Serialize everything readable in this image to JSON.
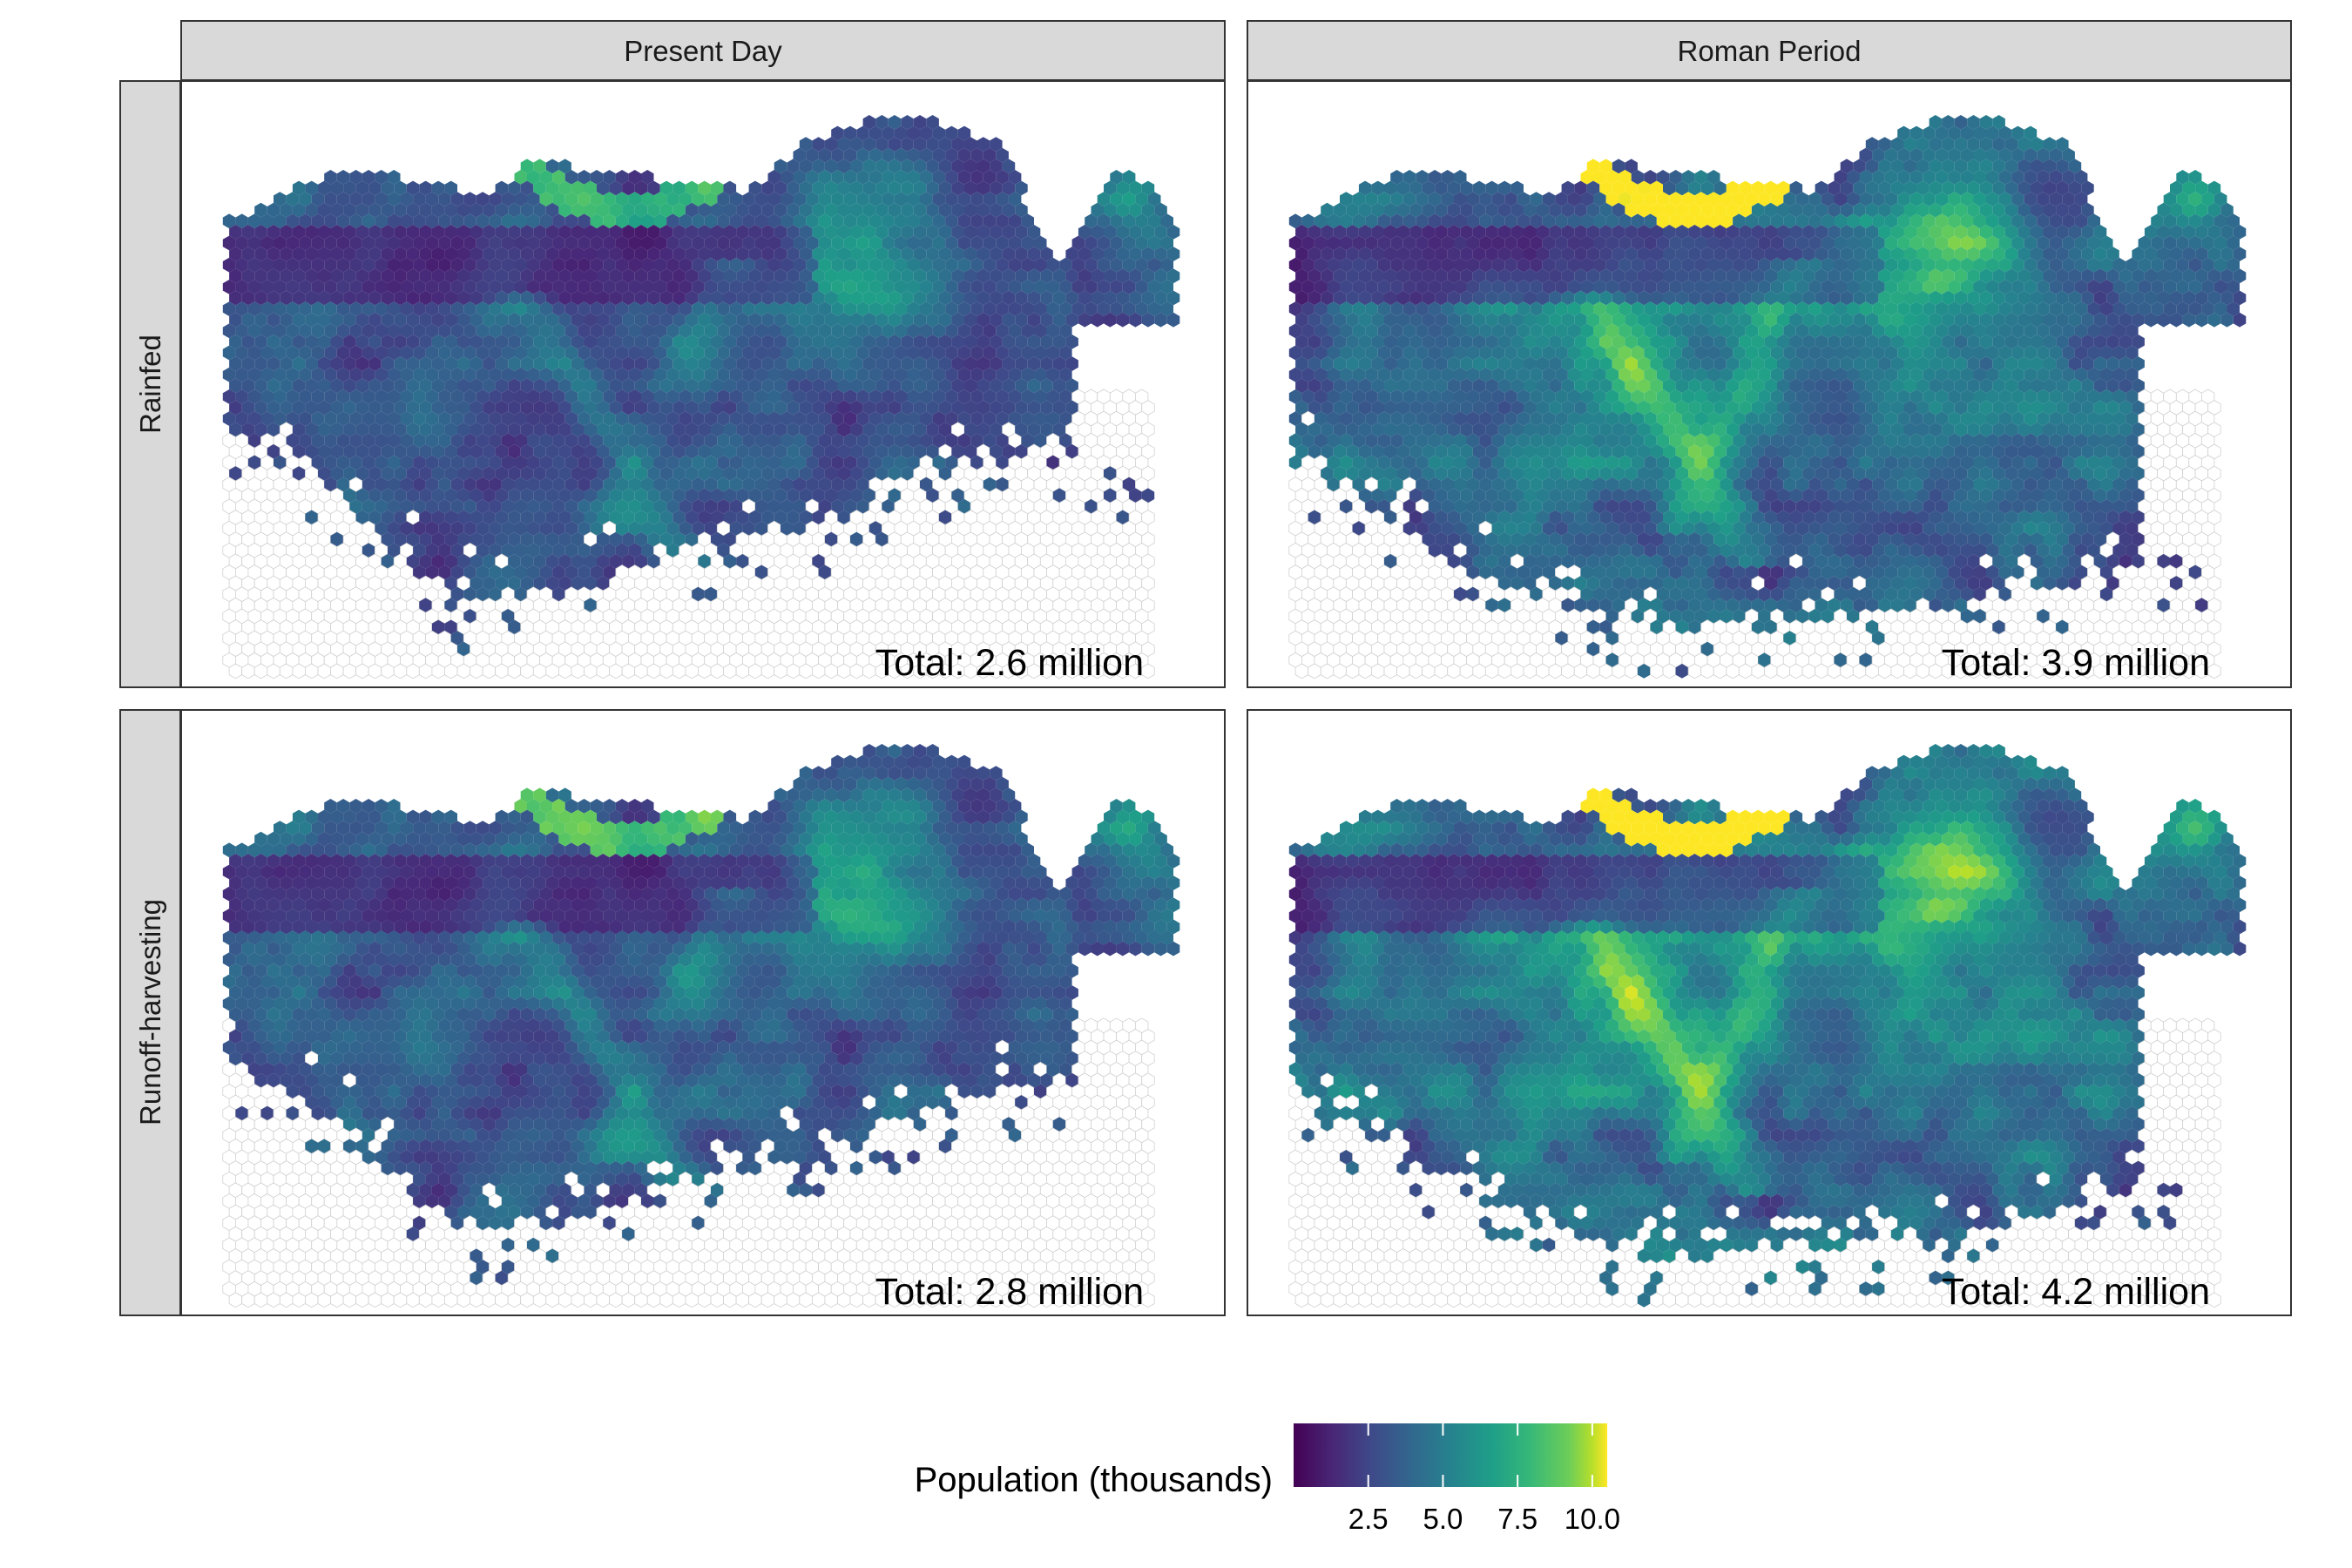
{
  "chart_data": {
    "type": "heatmap",
    "subtype": "faceted hexbin map",
    "facet_columns": [
      "Present Day",
      "Roman Period"
    ],
    "facet_rows": [
      "Rainfed",
      "Runoff-harvesting"
    ],
    "panels": [
      {
        "column": "Present Day",
        "row": "Rainfed",
        "total_label": "Total: 2.6 million"
      },
      {
        "column": "Roman Period",
        "row": "Rainfed",
        "total_label": "Total: 3.9 million"
      },
      {
        "column": "Present Day",
        "row": "Runoff-harvesting",
        "total_label": "Total: 2.8 million"
      },
      {
        "column": "Roman Period",
        "row": "Runoff-harvesting",
        "total_label": "Total: 4.2 million"
      }
    ],
    "legend": {
      "title": "Population (thousands)",
      "position": "bottom",
      "colormap": "viridis",
      "range": [
        0,
        10.5
      ],
      "ticks": [
        2.5,
        5.0,
        7.5,
        10.0
      ],
      "tick_labels": [
        "2.5",
        "5.0",
        "7.5",
        "10.0"
      ]
    },
    "empty_cell_color": "#ffffff",
    "empty_cell_stroke": "#d0d0d0",
    "axes_shown": false,
    "grid": false
  }
}
